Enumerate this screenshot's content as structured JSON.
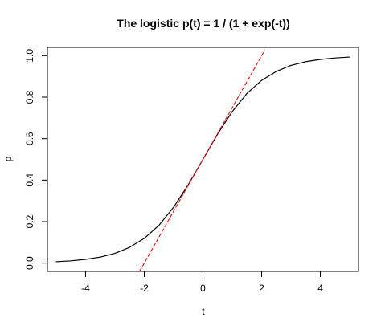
{
  "chart_data": {
    "type": "line",
    "title": "The logistic p(t) = 1 / (1 + exp(-t))",
    "xlabel": "t",
    "ylabel": "p",
    "xlim": [
      -5.3,
      5.3
    ],
    "ylim": [
      -0.04,
      1.04
    ],
    "x_ticks": [
      -4,
      -2,
      0,
      2,
      4
    ],
    "y_ticks": [
      0.0,
      0.2,
      0.4,
      0.6,
      0.8,
      1.0
    ],
    "x_tick_labels": [
      "-4",
      "-2",
      "0",
      "2",
      "4"
    ],
    "y_tick_labels": [
      "0.0",
      "0.2",
      "0.4",
      "0.6",
      "0.8",
      "1.0"
    ],
    "grid": false,
    "legend": "none",
    "series": [
      {
        "style": "solid",
        "color": "#000000",
        "x": [
          -5,
          -4.5,
          -4,
          -3.5,
          -3,
          -2.5,
          -2,
          -1.5,
          -1,
          -0.5,
          0,
          0.5,
          1,
          1.5,
          2,
          2.5,
          3,
          3.5,
          4,
          4.5,
          5
        ],
        "y": [
          0.0067,
          0.011,
          0.018,
          0.029,
          0.047,
          0.076,
          0.119,
          0.182,
          0.269,
          0.378,
          0.5,
          0.622,
          0.731,
          0.818,
          0.881,
          0.924,
          0.953,
          0.971,
          0.982,
          0.989,
          0.9933
        ]
      },
      {
        "style": "dashed",
        "color": "#e41a1c",
        "x": [
          -2.15,
          2.1
        ],
        "y": [
          -0.0375,
          1.025
        ]
      }
    ]
  }
}
